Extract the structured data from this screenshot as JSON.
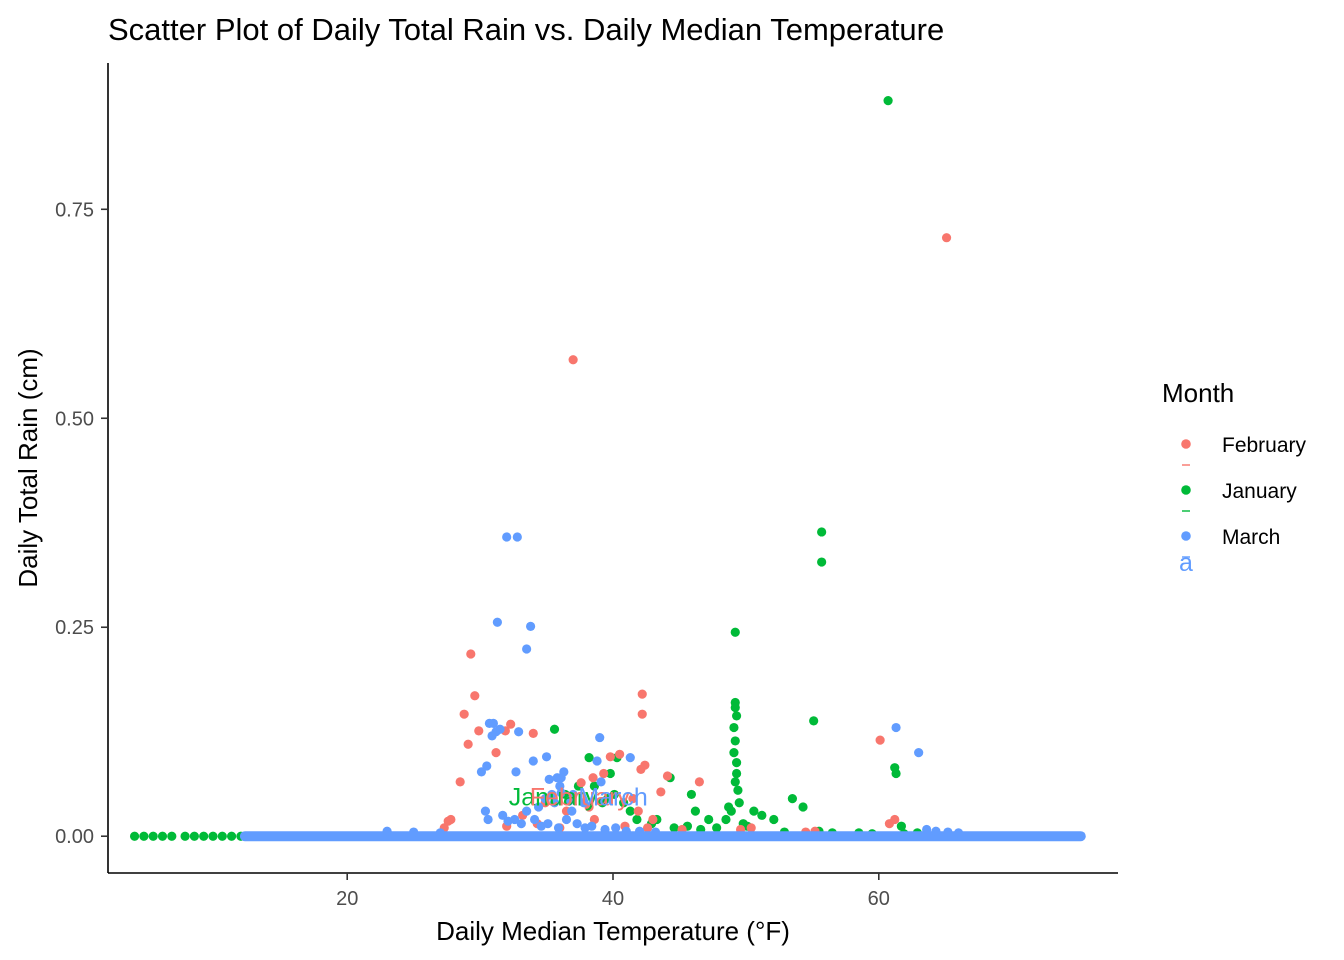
{
  "chart_data": {
    "type": "scatter",
    "title": "Scatter Plot of Daily Total Rain vs. Daily Median Temperature",
    "xlabel": "Daily Median Temperature (°F)",
    "ylabel": "Daily Total Rain (cm)",
    "xlim": [
      2,
      78
    ],
    "ylim": [
      -0.044,
      0.925
    ],
    "xticks": [
      20,
      40,
      60
    ],
    "xtick_labels": [
      "20",
      "40",
      "60"
    ],
    "yticks": [
      0,
      0.25,
      0.5,
      0.75
    ],
    "ytick_labels": [
      "0.00",
      "0.25",
      "0.50",
      "0.75"
    ],
    "grid": false,
    "legend": {
      "title": "Month",
      "placement": "right",
      "entries": [
        "February",
        "January",
        "March"
      ],
      "stray_glyph": "a"
    },
    "annotations": [
      {
        "text": "January",
        "x": 35.5,
        "y": 0.037,
        "color": "#00BA38"
      },
      {
        "text": "February",
        "x": 37.5,
        "y": 0.037,
        "color": "#F8766D"
      },
      {
        "text": "March",
        "x": 40,
        "y": 0.037,
        "color": "#619CFF"
      }
    ],
    "series": [
      {
        "name": "February",
        "color": "#F8766D",
        "x": [
          37,
          65.1,
          29.3,
          29.6,
          42.2,
          42.2,
          28.8,
          29.9,
          29.1,
          31.2,
          32.3,
          31.9,
          28.5,
          34,
          44.1,
          46.5,
          43.6,
          42.1,
          39.8,
          40.5,
          39.3,
          38.5,
          37.6,
          42.4,
          60.1,
          60.8,
          61.2,
          27.6,
          27.8,
          27.3,
          33.2,
          34.9,
          36.5,
          38.2,
          41.5,
          41.9,
          43,
          32,
          34.3,
          36,
          38.6,
          40.9,
          42.6,
          45.2,
          49.6,
          50.4,
          54.5,
          55.2
        ],
        "y": [
          0.57,
          0.716,
          0.218,
          0.168,
          0.17,
          0.146,
          0.146,
          0.126,
          0.11,
          0.1,
          0.134,
          0.126,
          0.065,
          0.123,
          0.072,
          0.065,
          0.053,
          0.08,
          0.095,
          0.098,
          0.075,
          0.07,
          0.064,
          0.085,
          0.115,
          0.015,
          0.02,
          0.018,
          0.02,
          0.01,
          0.025,
          0.04,
          0.03,
          0.035,
          0.045,
          0.03,
          0.02,
          0.012,
          0.015,
          0.01,
          0.02,
          0.012,
          0.01,
          0.008,
          0.008,
          0.01,
          0.005,
          0.006
        ]
      },
      {
        "name": "January",
        "color": "#00BA38",
        "x": [
          60.7,
          55.7,
          55.7,
          49.2,
          49.2,
          49.2,
          49.3,
          49.1,
          49.2,
          49.1,
          49.3,
          49.3,
          49.2,
          49.4,
          55.1,
          61.2,
          61.3,
          61.7,
          35.6,
          38.2,
          40.3,
          39.8,
          44.3,
          45.9,
          46.2,
          47.2,
          51.2,
          52.1,
          53.5,
          54.3,
          49.5,
          50.6,
          48.5,
          48.7,
          48.9,
          49.8,
          38.6,
          39.2,
          40.1,
          41.3,
          41.8,
          42.9,
          44.6,
          45.6,
          46.6,
          47.8,
          50.1,
          52.9,
          55.5,
          56.5,
          58.5,
          59.5,
          61.9,
          62.9,
          36.4,
          37.4,
          39.6,
          40.8,
          43.3,
          4,
          4.7,
          5.4,
          6.1,
          6.8,
          7.8,
          8.5,
          9.2,
          9.9,
          10.6,
          11.3,
          12
        ],
        "y": [
          0.88,
          0.364,
          0.328,
          0.244,
          0.16,
          0.154,
          0.144,
          0.13,
          0.114,
          0.1,
          0.088,
          0.075,
          0.065,
          0.055,
          0.138,
          0.082,
          0.075,
          0.012,
          0.128,
          0.094,
          0.094,
          0.075,
          0.07,
          0.05,
          0.03,
          0.02,
          0.025,
          0.02,
          0.045,
          0.035,
          0.04,
          0.03,
          0.02,
          0.035,
          0.03,
          0.015,
          0.06,
          0.04,
          0.05,
          0.03,
          0.02,
          0.015,
          0.01,
          0.012,
          0.008,
          0.01,
          0.012,
          0.005,
          0.006,
          0.004,
          0.004,
          0.003,
          0.003,
          0.004,
          0.05,
          0.06,
          0.045,
          0.04,
          0.02,
          0,
          0,
          0,
          0,
          0,
          0,
          0,
          0,
          0,
          0,
          0,
          0
        ]
      },
      {
        "name": "March",
        "color": "#619CFF",
        "x": [
          32,
          32.8,
          31.3,
          33.8,
          33.5,
          61.3,
          63,
          30.7,
          31,
          31.2,
          30.9,
          31.5,
          32.9,
          34,
          35,
          36.3,
          35.8,
          36,
          36.1,
          35.4,
          39,
          38.8,
          39.1,
          41.3,
          35.6,
          34.9,
          30.5,
          30.1,
          32.7,
          35.2,
          36.1,
          37,
          37.8,
          36.7,
          36.9,
          34.4,
          33.5,
          30.4,
          30.6,
          31.7,
          32.1,
          32.6,
          33.1,
          34.1,
          34.6,
          35.1,
          35.9,
          36.5,
          37.3,
          37.9,
          38.4,
          39.4,
          40.2,
          41,
          42,
          43.2,
          23,
          25,
          27,
          63.6,
          64.3,
          65.2,
          66
        ],
        "y": [
          0.358,
          0.358,
          0.256,
          0.251,
          0.224,
          0.13,
          0.1,
          0.135,
          0.135,
          0.125,
          0.12,
          0.128,
          0.125,
          0.09,
          0.095,
          0.077,
          0.07,
          0.06,
          0.052,
          0.05,
          0.118,
          0.09,
          0.065,
          0.094,
          0.04,
          0.045,
          0.084,
          0.077,
          0.077,
          0.068,
          0.07,
          0.05,
          0.04,
          0.042,
          0.03,
          0.035,
          0.03,
          0.03,
          0.02,
          0.025,
          0.018,
          0.02,
          0.015,
          0.02,
          0.012,
          0.015,
          0.01,
          0.02,
          0.015,
          0.01,
          0.012,
          0.008,
          0.01,
          0.006,
          0.006,
          0.005,
          0.006,
          0.005,
          0.004,
          0.008,
          0.006,
          0.005,
          0.004
        ],
        "dense_band": {
          "x_from": 12.3,
          "x_to": 75.2,
          "y": 0
        }
      }
    ]
  }
}
